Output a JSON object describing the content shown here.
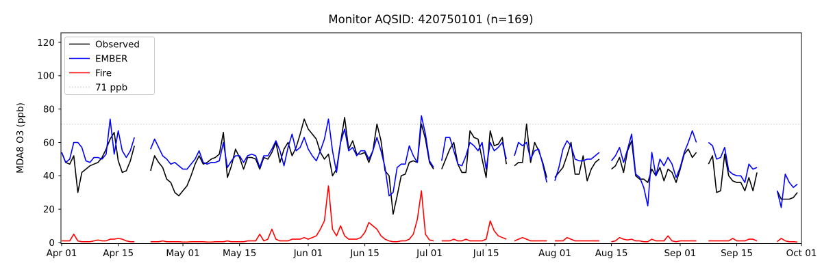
{
  "chart_data": {
    "type": "line",
    "title": "Monitor AQSID: 420750101 (n=169)",
    "n_points": 169,
    "xlabel": "",
    "ylabel": "MDA8 O3 (ppb)",
    "ylim": [
      0,
      126
    ],
    "grid": false,
    "legend_position": "upper-left",
    "start_date": "Apr 01",
    "end_date": "Oct 01",
    "x_ticks": [
      {
        "label": "Apr 01",
        "day": 0
      },
      {
        "label": "Apr 15",
        "day": 14
      },
      {
        "label": "May 01",
        "day": 30
      },
      {
        "label": "May 15",
        "day": 44
      },
      {
        "label": "Jun 01",
        "day": 61
      },
      {
        "label": "Jun 15",
        "day": 75
      },
      {
        "label": "Jul 01",
        "day": 91
      },
      {
        "label": "Jul 15",
        "day": 105
      },
      {
        "label": "Aug 01",
        "day": 122
      },
      {
        "label": "Aug 15",
        "day": 136
      },
      {
        "label": "Sep 01",
        "day": 153
      },
      {
        "label": "Sep 15",
        "day": 167
      },
      {
        "label": "Oct 01",
        "day": 183
      }
    ],
    "y_ticks": [
      0,
      20,
      40,
      60,
      80,
      100,
      120
    ],
    "threshold": {
      "label": "71 ppb",
      "value": 71,
      "color": "#cccccc",
      "style": "dotted"
    },
    "series": [
      {
        "name": "Observed",
        "color": "#000000",
        "values": [
          54,
          48,
          47,
          52,
          30,
          42,
          44,
          46,
          47,
          48,
          51,
          56,
          62,
          66,
          49,
          42,
          43,
          49,
          58,
          null,
          null,
          null,
          43,
          52,
          48,
          45,
          38,
          36,
          30,
          28,
          31,
          34,
          40,
          47,
          52,
          47,
          48,
          50,
          51,
          53,
          66,
          39,
          46,
          56,
          51,
          44,
          51,
          51,
          50,
          44,
          51,
          50,
          54,
          60,
          48,
          56,
          60,
          52,
          57,
          65,
          74,
          68,
          65,
          62,
          54,
          50,
          53,
          40,
          44,
          60,
          75,
          56,
          61,
          53,
          53,
          54,
          48,
          55,
          71,
          61,
          43,
          40,
          17,
          28,
          40,
          41,
          48,
          49,
          48,
          71,
          62,
          48,
          44,
          null,
          44,
          50,
          56,
          60,
          47,
          42,
          42,
          67,
          63,
          62,
          50,
          39,
          67,
          58,
          59,
          63,
          47,
          null,
          46,
          48,
          48,
          71,
          48,
          60,
          55,
          48,
          39,
          null,
          39,
          42,
          45,
          52,
          60,
          41,
          41,
          52,
          37,
          44,
          48,
          50,
          null,
          null,
          44,
          46,
          51,
          42,
          55,
          61,
          40,
          38,
          38,
          36,
          44,
          40,
          45,
          37,
          44,
          42,
          36,
          44,
          53,
          56,
          51,
          54,
          null,
          null,
          47,
          52,
          30,
          31,
          53,
          40,
          37,
          36,
          36,
          31,
          39,
          31,
          42,
          null,
          null,
          null,
          null,
          31,
          26,
          26,
          26,
          27,
          30
        ]
      },
      {
        "name": "EMBER",
        "color": "#0000ff",
        "values": [
          54,
          48,
          50,
          60,
          60,
          57,
          49,
          48,
          51,
          51,
          50,
          53,
          74,
          53,
          67,
          55,
          51,
          55,
          63,
          null,
          null,
          null,
          56,
          62,
          57,
          52,
          50,
          47,
          48,
          46,
          44,
          44,
          47,
          50,
          55,
          48,
          47,
          48,
          48,
          49,
          60,
          45,
          49,
          52,
          52,
          48,
          52,
          53,
          52,
          45,
          52,
          52,
          56,
          61,
          55,
          46,
          57,
          65,
          55,
          57,
          63,
          56,
          52,
          49,
          55,
          62,
          74,
          55,
          42,
          60,
          68,
          55,
          57,
          52,
          55,
          55,
          50,
          55,
          63,
          55,
          45,
          28,
          30,
          45,
          47,
          47,
          58,
          52,
          48,
          76,
          65,
          49,
          45,
          null,
          49,
          63,
          63,
          55,
          47,
          46,
          52,
          60,
          58,
          55,
          60,
          44,
          60,
          55,
          57,
          60,
          50,
          null,
          52,
          60,
          58,
          60,
          50,
          55,
          56,
          47,
          36,
          null,
          37,
          45,
          56,
          61,
          58,
          50,
          49,
          49,
          50,
          50,
          52,
          54,
          null,
          null,
          49,
          52,
          57,
          48,
          56,
          65,
          41,
          39,
          33,
          22,
          54,
          40,
          50,
          46,
          51,
          47,
          39,
          45,
          54,
          60,
          67,
          60,
          null,
          null,
          60,
          58,
          50,
          51,
          57,
          43,
          41,
          40,
          40,
          36,
          47,
          44,
          45,
          null,
          null,
          null,
          null,
          31,
          21,
          41,
          36,
          33,
          35
        ]
      },
      {
        "name": "Fire",
        "color": "#ff0000",
        "values": [
          1,
          1,
          1,
          5,
          1,
          0.5,
          0.5,
          0.5,
          1,
          1.5,
          1,
          1,
          2,
          2,
          2.5,
          2,
          1,
          0.5,
          0.5,
          null,
          null,
          null,
          0.5,
          0.5,
          0.5,
          1,
          0.5,
          0.5,
          0.5,
          0.5,
          0.3,
          0.3,
          0.5,
          0.5,
          0.5,
          0.5,
          0.3,
          0.3,
          0.5,
          0.5,
          0.5,
          1,
          0.5,
          0.5,
          0.5,
          0.5,
          1,
          1,
          1,
          5,
          1,
          2,
          8,
          2,
          1,
          1,
          1,
          2,
          2,
          2,
          3,
          2,
          3,
          4,
          8,
          13,
          34,
          8,
          4,
          10,
          4,
          2,
          2,
          2,
          3,
          6,
          12,
          10,
          8,
          4,
          2,
          1,
          0.5,
          0.5,
          1,
          1,
          2,
          5,
          14,
          31,
          5,
          1.5,
          1,
          null,
          1,
          1,
          1,
          2,
          1,
          1,
          2,
          1,
          1,
          1,
          1,
          2,
          13,
          7,
          4,
          3,
          2,
          null,
          1,
          2,
          3,
          2,
          1,
          1,
          1,
          1,
          1,
          null,
          1,
          1,
          1,
          3,
          2,
          1,
          1,
          1,
          1,
          1,
          1,
          1,
          null,
          null,
          0.5,
          1,
          3,
          2,
          1.5,
          2,
          1,
          1,
          0.5,
          0.5,
          2,
          1,
          1,
          1,
          4,
          1,
          0.5,
          1,
          1,
          1,
          1,
          1,
          null,
          null,
          1,
          1,
          1,
          1,
          1,
          1,
          2.5,
          1,
          1,
          1,
          2,
          2,
          1,
          null,
          null,
          null,
          null,
          0.5,
          2.5,
          1,
          0.5,
          0.5,
          0.3
        ]
      }
    ]
  }
}
